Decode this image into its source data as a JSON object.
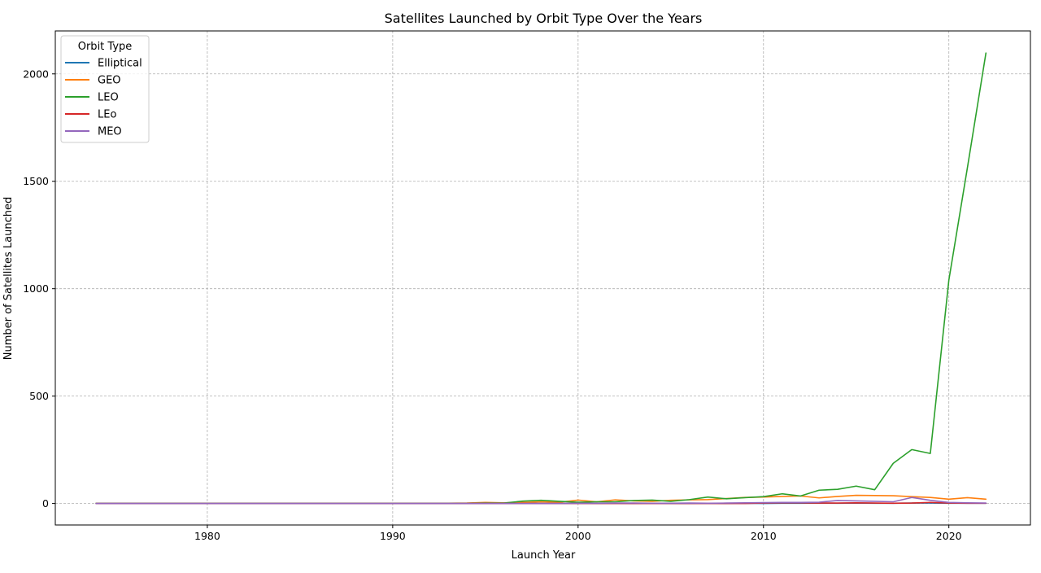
{
  "chart_data": {
    "type": "line",
    "title": "Satellites Launched by Orbit Type Over the Years",
    "xlabel": "Launch Year",
    "ylabel": "Number of Satellites Launched",
    "xlim": [
      1971.8,
      2024.4
    ],
    "ylim": [
      -100,
      2200
    ],
    "x_ticks": [
      1980,
      1990,
      2000,
      2010,
      2020
    ],
    "y_ticks": [
      0,
      500,
      1000,
      1500,
      2000
    ],
    "grid": true,
    "legend": {
      "title": "Orbit Type",
      "placement": "top-left"
    },
    "x": [
      1974,
      1975,
      1976,
      1977,
      1978,
      1979,
      1980,
      1981,
      1982,
      1983,
      1984,
      1985,
      1986,
      1987,
      1988,
      1989,
      1990,
      1991,
      1992,
      1993,
      1994,
      1995,
      1996,
      1997,
      1998,
      1999,
      2000,
      2001,
      2002,
      2003,
      2004,
      2005,
      2006,
      2007,
      2008,
      2009,
      2010,
      2011,
      2012,
      2013,
      2014,
      2015,
      2016,
      2017,
      2018,
      2019,
      2020,
      2021,
      2022
    ],
    "series": [
      {
        "name": "Elliptical",
        "color": "#1f77b4",
        "values": [
          0,
          0,
          0,
          0,
          0,
          0,
          0,
          0,
          0,
          0,
          0,
          0,
          0,
          0,
          0,
          0,
          0,
          0,
          0,
          0,
          0,
          0,
          0,
          1,
          0,
          0,
          1,
          0,
          1,
          0,
          1,
          0,
          0,
          1,
          0,
          1,
          0,
          1,
          1,
          2,
          1,
          2,
          1,
          1,
          2,
          2,
          1,
          1,
          1
        ]
      },
      {
        "name": "GEO",
        "color": "#ff7f0e",
        "values": [
          1,
          1,
          1,
          1,
          1,
          1,
          1,
          1,
          1,
          1,
          1,
          1,
          1,
          1,
          1,
          1,
          1,
          1,
          1,
          1,
          2,
          5,
          3,
          5,
          8,
          6,
          16,
          8,
          17,
          12,
          10,
          15,
          17,
          18,
          23,
          28,
          30,
          33,
          35,
          26,
          33,
          38,
          37,
          36,
          32,
          28,
          20,
          27,
          20
        ]
      },
      {
        "name": "LEO",
        "color": "#2ca02c",
        "values": [
          1,
          1,
          1,
          1,
          1,
          1,
          1,
          1,
          1,
          1,
          1,
          1,
          1,
          1,
          1,
          1,
          1,
          1,
          1,
          1,
          1,
          2,
          2,
          11,
          15,
          10,
          6,
          8,
          8,
          14,
          16,
          10,
          18,
          30,
          22,
          27,
          32,
          45,
          35,
          62,
          66,
          81,
          64,
          187,
          251,
          233,
          1040,
          1563,
          2097
        ]
      },
      {
        "name": "LEo",
        "color": "#d62728",
        "values": [
          0,
          0,
          0,
          0,
          0,
          0,
          0,
          0,
          0,
          0,
          0,
          0,
          0,
          0,
          0,
          0,
          0,
          0,
          0,
          0,
          0,
          0,
          0,
          0,
          0,
          0,
          0,
          0,
          0,
          0,
          0,
          0,
          0,
          0,
          0,
          0,
          2,
          3,
          3,
          2,
          2,
          3,
          2,
          1,
          2,
          5,
          2,
          1,
          1
        ]
      },
      {
        "name": "MEO",
        "color": "#9467bd",
        "values": [
          0,
          0,
          0,
          0,
          0,
          0,
          0,
          0,
          0,
          0,
          0,
          0,
          0,
          0,
          0,
          0,
          0,
          0,
          0,
          0,
          0,
          0,
          0,
          0,
          0,
          0,
          1,
          1,
          2,
          2,
          1,
          1,
          2,
          1,
          2,
          3,
          4,
          5,
          5,
          6,
          14,
          12,
          10,
          8,
          28,
          15,
          5,
          3,
          2
        ]
      }
    ]
  }
}
